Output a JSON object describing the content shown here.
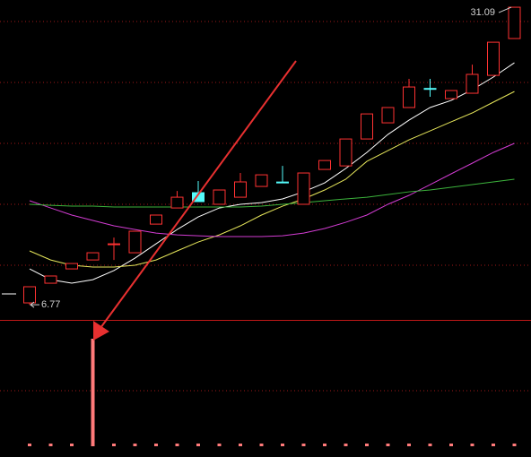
{
  "chart_data": {
    "type": "candlestick",
    "open": [
      6.92,
      8.53,
      9.7,
      10.43,
      11.75,
      11.02,
      13.36,
      14.68,
      15.93,
      14.98,
      15.56,
      16.44,
      16.8,
      14.98,
      17.83,
      18.12,
      20.32,
      21.64,
      22.89,
      24.45,
      23.62,
      24.06,
      25.52,
      28.53
    ],
    "high": [
      8.24,
      9.12,
      10.14,
      11.02,
      12.26,
      12.78,
      14.1,
      16.07,
      16.88,
      16.15,
      17.54,
      17.39,
      18.12,
      17.54,
      18.56,
      20.32,
      22.37,
      22.89,
      25.23,
      25.23,
      24.28,
      26.4,
      28.23,
      31.09
    ],
    "low": [
      6.77,
      8.53,
      9.7,
      10.43,
      10.43,
      11.02,
      13.36,
      14.68,
      15.2,
      14.98,
      15.56,
      16.44,
      16.73,
      14.98,
      17.83,
      18.12,
      20.32,
      21.64,
      22.89,
      23.77,
      23.62,
      24.06,
      25.52,
      28.53
    ],
    "close": [
      8.24,
      9.12,
      10.14,
      11.02,
      11.75,
      12.78,
      14.1,
      15.56,
      15.2,
      16.15,
      16.81,
      17.39,
      16.73,
      17.54,
      18.56,
      20.32,
      22.37,
      22.89,
      24.57,
      24.42,
      24.28,
      25.6,
      28.23,
      31.09
    ],
    "up_color": "#ff3232",
    "down_color": "#54fcfc",
    "ylim": [
      5.53,
      31.68
    ],
    "lines": [
      {
        "color": "#ffffff",
        "values": [
          9.7,
          8.82,
          8.53,
          8.82,
          9.56,
          10.58,
          11.75,
          12.92,
          13.95,
          14.68,
          14.98,
          15.12,
          15.42,
          16.0,
          16.73,
          17.91,
          19.22,
          20.69,
          21.86,
          22.89,
          23.47,
          24.35,
          25.38,
          26.55
        ]
      },
      {
        "color": "#e6e65a",
        "values": [
          11.17,
          10.43,
          10.0,
          9.85,
          9.85,
          10.0,
          10.43,
          11.17,
          11.9,
          12.48,
          13.22,
          14.1,
          14.83,
          15.42,
          16.15,
          17.03,
          18.49,
          19.37,
          20.25,
          20.98,
          21.72,
          22.45,
          23.33,
          24.2
        ]
      },
      {
        "color": "#d23cd2",
        "values": [
          15.27,
          14.68,
          14.1,
          13.66,
          13.22,
          12.92,
          12.63,
          12.48,
          12.41,
          12.34,
          12.34,
          12.34,
          12.41,
          12.63,
          13.0,
          13.51,
          14.1,
          14.98,
          15.71,
          16.59,
          17.47,
          18.34,
          19.22,
          19.96
        ]
      },
      {
        "color": "#3cb43c",
        "values": [
          14.98,
          14.9,
          14.83,
          14.83,
          14.76,
          14.76,
          14.76,
          14.76,
          14.76,
          14.76,
          14.76,
          14.83,
          14.98,
          15.12,
          15.27,
          15.42,
          15.56,
          15.78,
          16.0,
          16.15,
          16.37,
          16.59,
          16.81,
          17.03
        ]
      }
    ],
    "signal": {
      "color": "#ff7a7a",
      "ylim": [
        0,
        1
      ],
      "values": [
        0,
        0,
        0,
        1,
        0,
        0,
        0,
        0,
        0,
        0,
        0,
        0,
        0,
        0,
        0,
        0,
        0,
        0,
        0,
        0,
        0,
        0,
        0,
        0
      ]
    },
    "annotations": [
      31.09,
      6.77
    ]
  }
}
